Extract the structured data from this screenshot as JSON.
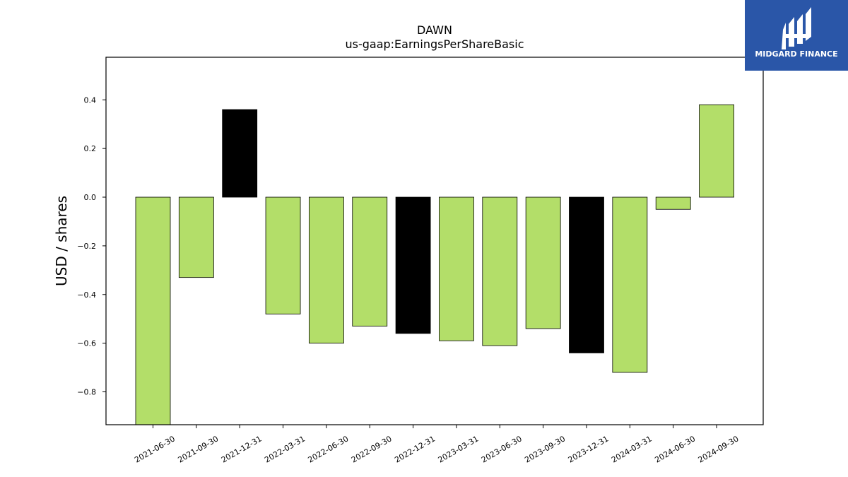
{
  "logo": {
    "text": "MIDGARD FINANCE",
    "background": "#2A56A8"
  },
  "colors": {
    "positive_or_normal": "#B3DE69",
    "highlight": "#000000",
    "edge": "#000000"
  },
  "chart_data": {
    "type": "bar",
    "title": "DAWN",
    "subtitle": "us-gaap:EarningsPerShareBasic",
    "ylabel": "USD / shares",
    "xlabel": "",
    "ylim": [
      -0.935,
      0.575
    ],
    "yticks": [
      -0.8,
      -0.6,
      -0.4,
      -0.2,
      0.0,
      0.2,
      0.4
    ],
    "ytick_labels": [
      "−0.8",
      "−0.6",
      "−0.4",
      "−0.2",
      "0.0",
      "0.2",
      "0.4"
    ],
    "grid": false,
    "categories": [
      "2021-06-30",
      "2021-09-30",
      "2021-12-31",
      "2022-03-31",
      "2022-06-30",
      "2022-09-30",
      "2022-12-31",
      "2023-03-31",
      "2023-06-30",
      "2023-09-30",
      "2023-12-31",
      "2024-03-31",
      "2024-06-30",
      "2024-09-30"
    ],
    "values": [
      -0.935,
      -0.33,
      0.36,
      -0.48,
      -0.6,
      -0.53,
      -0.56,
      -0.59,
      -0.61,
      -0.54,
      -0.64,
      -0.72,
      -0.05,
      0.38
    ],
    "bar_colors": [
      "#B3DE69",
      "#B3DE69",
      "#000000",
      "#B3DE69",
      "#B3DE69",
      "#B3DE69",
      "#000000",
      "#B3DE69",
      "#B3DE69",
      "#B3DE69",
      "#000000",
      "#B3DE69",
      "#B3DE69",
      "#B3DE69"
    ]
  }
}
